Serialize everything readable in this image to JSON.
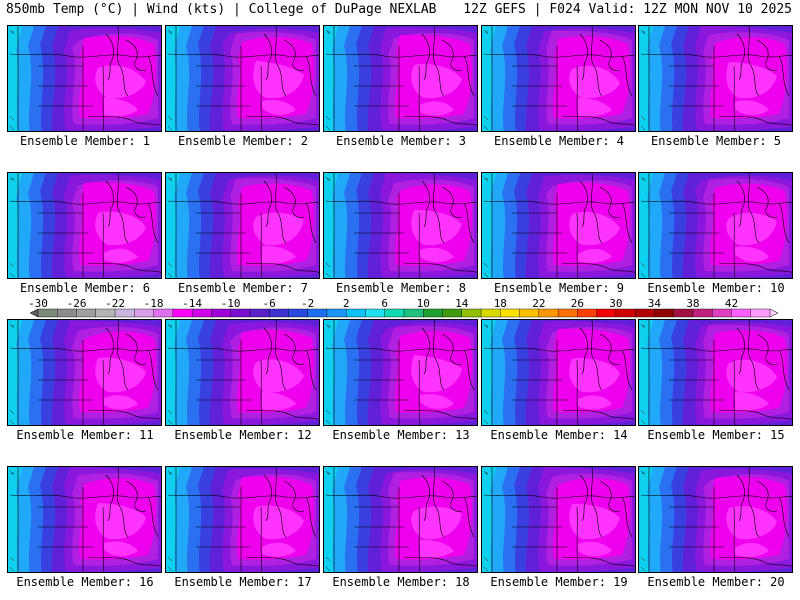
{
  "header": {
    "left": "850mb Temp (°C) | Wind (kts) | College of DuPage NEXLAB",
    "right": "12Z GEFS | F024 Valid: 12Z MON NOV 10 2025"
  },
  "panels": [
    {
      "label": "Ensemble Member: 1"
    },
    {
      "label": "Ensemble Member: 2"
    },
    {
      "label": "Ensemble Member: 3"
    },
    {
      "label": "Ensemble Member: 4"
    },
    {
      "label": "Ensemble Member: 5"
    },
    {
      "label": "Ensemble Member: 6"
    },
    {
      "label": "Ensemble Member: 7"
    },
    {
      "label": "Ensemble Member: 8"
    },
    {
      "label": "Ensemble Member: 9"
    },
    {
      "label": "Ensemble Member: 10"
    },
    {
      "label": "Ensemble Member: 11"
    },
    {
      "label": "Ensemble Member: 12"
    },
    {
      "label": "Ensemble Member: 13"
    },
    {
      "label": "Ensemble Member: 14"
    },
    {
      "label": "Ensemble Member: 15"
    },
    {
      "label": "Ensemble Member: 16"
    },
    {
      "label": "Ensemble Member: 17"
    },
    {
      "label": "Ensemble Member: 18"
    },
    {
      "label": "Ensemble Member: 19"
    },
    {
      "label": "Ensemble Member: 20"
    }
  ],
  "colorbar": {
    "ticks": [
      "-30",
      "-26",
      "-22",
      "-18",
      "-14",
      "-10",
      "-6",
      "-2",
      "2",
      "6",
      "10",
      "14",
      "18",
      "22",
      "26",
      "30",
      "34",
      "38",
      "42"
    ],
    "colors": [
      "#7b8a7b",
      "#8c8c8c",
      "#a0a0a0",
      "#b4b4b4",
      "#c8b4dc",
      "#d8a0e8",
      "#e070f0",
      "#ff00ff",
      "#d000e8",
      "#a000d8",
      "#7a10d0",
      "#5a20c8",
      "#4030d0",
      "#2848e0",
      "#1e6ef0",
      "#1a96f8",
      "#10c0f8",
      "#20e0f0",
      "#10d8b0",
      "#20c080",
      "#20a030",
      "#409a10",
      "#90c000",
      "#d8d800",
      "#ffe000",
      "#ffc000",
      "#ff9800",
      "#ff7000",
      "#ff4000",
      "#f00000",
      "#d00000",
      "#b00000",
      "#900000",
      "#a01040",
      "#c02080",
      "#e040c0",
      "#ff60ff",
      "#ff9cff"
    ],
    "field_colors": {
      "cold_core": "#ee00ee",
      "bright": "#ff33ff",
      "mid_purple": "#b020e0",
      "purple": "#8a18dc",
      "violet": "#6020d8",
      "blue": "#3a40e0",
      "mid_blue": "#2a70f0",
      "sky": "#22a8f8",
      "cyan": "#10d0f0",
      "teal": "#18dcc8"
    }
  }
}
